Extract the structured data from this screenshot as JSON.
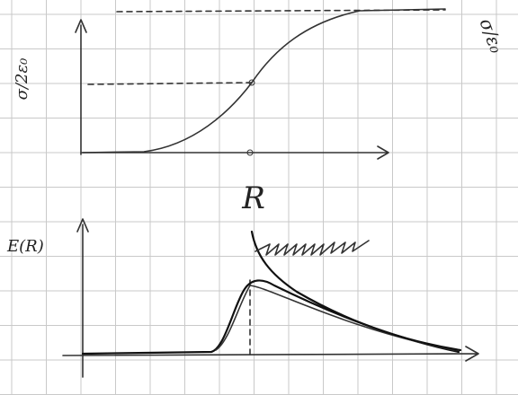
{
  "labels": {
    "top_y_label": "σ/2ε₀",
    "top_right_label": "σ/ε₀",
    "x_label": "R",
    "bottom_y_label": "E(R)"
  }
}
